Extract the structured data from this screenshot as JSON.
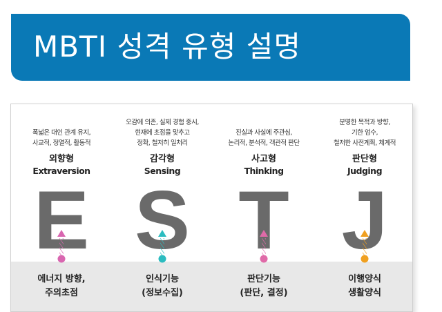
{
  "title": "MBTI 성격 유형 설명",
  "colors": {
    "banner": "#0a79b6",
    "letter": "#6a6a6a",
    "band": "#e8e8e8"
  },
  "types": [
    {
      "desc": [
        "폭넓은 대인 관계 유지,",
        "사교적, 정열적, 활동적"
      ],
      "korean": "외향형",
      "english": "Extraversion",
      "letter": "E",
      "color": "#d966b0",
      "function": [
        "에너지 방향,",
        "주의초점"
      ]
    },
    {
      "desc": [
        "오감에 의존, 실제 경험 중시,",
        "현재에 초점을 맞추고",
        "정확, 철저히 일처리"
      ],
      "korean": "감각형",
      "english": "Sensing",
      "letter": "S",
      "color": "#2bbcc0",
      "function": [
        "인식기능",
        "(정보수집)"
      ]
    },
    {
      "desc": [
        "진실과 사실에 주관심,",
        "논리적, 분석적, 객관적 판단"
      ],
      "korean": "사고형",
      "english": "Thinking",
      "letter": "T",
      "color": "#e06aa8",
      "function": [
        "판단기능",
        "(판단, 결정)"
      ]
    },
    {
      "desc": [
        "분명한 목적과 방향,",
        "기한 엄수,",
        "철저한 사전계획, 체계적"
      ],
      "korean": "판단형",
      "english": "Judging",
      "letter": "J",
      "color": "#f0a020",
      "function": [
        "이행양식",
        "생활양식"
      ]
    }
  ]
}
